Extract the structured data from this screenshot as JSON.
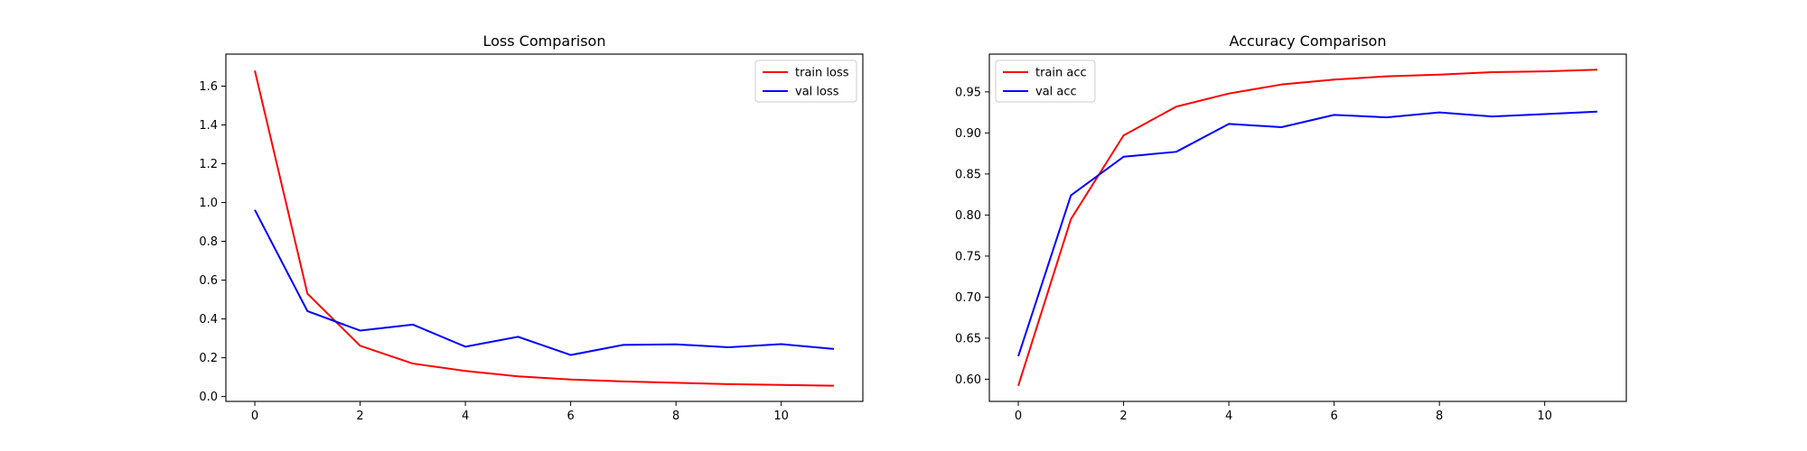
{
  "chart_data": [
    {
      "type": "line",
      "title": "Loss Comparison",
      "xlabel": "",
      "ylabel": "",
      "x": [
        0,
        1,
        2,
        3,
        4,
        5,
        6,
        7,
        8,
        9,
        10,
        11
      ],
      "series": [
        {
          "name": "train loss",
          "color": "#ff0000",
          "values": [
            1.68,
            0.53,
            0.262,
            0.17,
            0.132,
            0.104,
            0.088,
            0.078,
            0.071,
            0.064,
            0.06,
            0.056
          ]
        },
        {
          "name": "val loss",
          "color": "#0000ff",
          "values": [
            0.962,
            0.44,
            0.34,
            0.371,
            0.257,
            0.308,
            0.214,
            0.266,
            0.269,
            0.254,
            0.27,
            0.245
          ]
        }
      ],
      "xlim": [
        -0.55,
        11.55
      ],
      "ylim": [
        -0.025,
        1.765
      ],
      "xticks": [
        0,
        2,
        4,
        6,
        8,
        10
      ],
      "xtick_labels": [
        "0",
        "2",
        "4",
        "6",
        "8",
        "10"
      ],
      "yticks": [
        0.0,
        0.2,
        0.4,
        0.6,
        0.8,
        1.0,
        1.2,
        1.4,
        1.6
      ],
      "ytick_labels": [
        "0.0",
        "0.2",
        "0.4",
        "0.6",
        "0.8",
        "1.0",
        "1.2",
        "1.4",
        "1.6"
      ],
      "legend_position": "top-right",
      "grid": false
    },
    {
      "type": "line",
      "title": "Accuracy Comparison",
      "xlabel": "",
      "ylabel": "",
      "x": [
        0,
        1,
        2,
        3,
        4,
        5,
        6,
        7,
        8,
        9,
        10,
        11
      ],
      "series": [
        {
          "name": "train acc",
          "color": "#ff0000",
          "values": [
            0.592,
            0.795,
            0.897,
            0.932,
            0.948,
            0.959,
            0.965,
            0.969,
            0.971,
            0.974,
            0.975,
            0.977
          ]
        },
        {
          "name": "val acc",
          "color": "#0000ff",
          "values": [
            0.628,
            0.824,
            0.871,
            0.877,
            0.911,
            0.907,
            0.922,
            0.919,
            0.925,
            0.92,
            0.923,
            0.926
          ]
        }
      ],
      "xlim": [
        -0.55,
        11.55
      ],
      "ylim": [
        0.573,
        0.996
      ],
      "xticks": [
        0,
        2,
        4,
        6,
        8,
        10
      ],
      "xtick_labels": [
        "0",
        "2",
        "4",
        "6",
        "8",
        "10"
      ],
      "yticks": [
        0.6,
        0.65,
        0.7,
        0.75,
        0.8,
        0.85,
        0.9,
        0.95
      ],
      "ytick_labels": [
        "0.60",
        "0.65",
        "0.70",
        "0.75",
        "0.80",
        "0.85",
        "0.90",
        "0.95"
      ],
      "legend_position": "top-left",
      "grid": false
    }
  ]
}
